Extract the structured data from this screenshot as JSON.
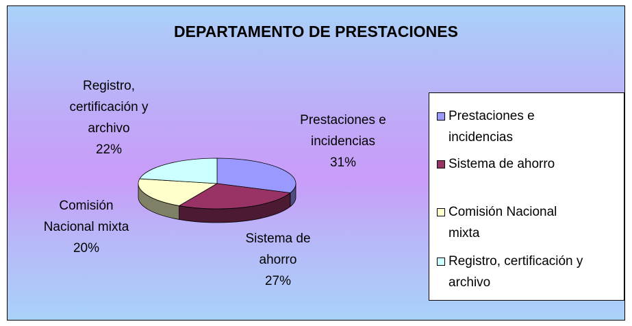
{
  "chart_data": {
    "type": "pie",
    "title": "DEPARTAMENTO DE PRESTACIONES",
    "categories": [
      "Prestaciones e incidencias",
      "Sistema de ahorro",
      "Comisión Nacional mixta",
      "Registro, certificación y archivo"
    ],
    "values": [
      31,
      27,
      20,
      22
    ],
    "value_labels": [
      "31%",
      "27%",
      "20%",
      "22%"
    ],
    "colors": [
      "#9999ff",
      "#993366",
      "#ffffcc",
      "#ccffff"
    ],
    "legend": "right"
  }
}
